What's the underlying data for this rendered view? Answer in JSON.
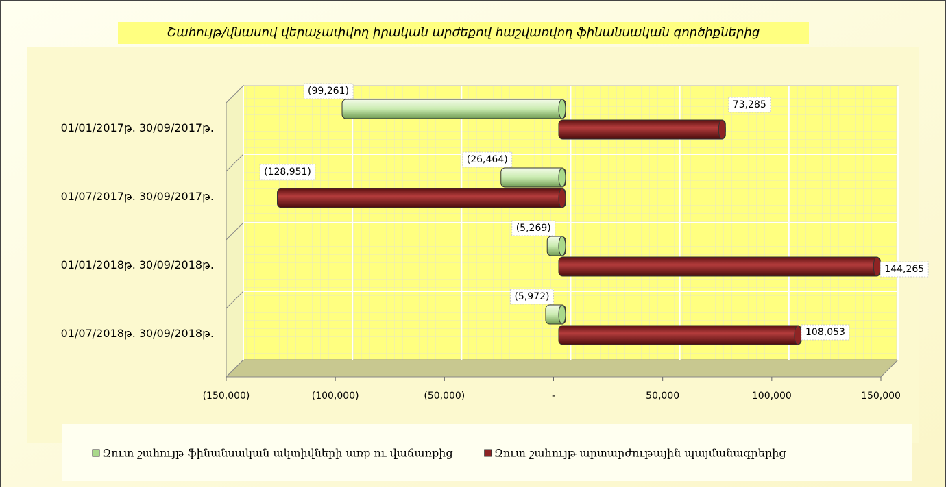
{
  "chart_data": {
    "type": "bar",
    "orientation": "horizontal",
    "title": "Շահույթ/վնասով վերաչափվող իրական արժեքով հաշվառվող ֆինանսական գործիքներից",
    "categories": [
      "01/01/2017թ.  30/09/2017թ.",
      "01/07/2017թ.  30/09/2017թ.",
      "01/01/2018թ.  30/09/2018թ.",
      "01/07/2018թ.  30/09/2018թ."
    ],
    "series": [
      {
        "name": "Զուտ շահույթ  ֆինանսական ակտիվների առք ու վաճառքից",
        "color": "#a9d98a",
        "values": [
          -99261,
          -26464,
          -5269,
          -5972
        ],
        "value_labels": [
          "(99,261)",
          "(26,464)",
          "(5,269)",
          "(5,972)"
        ]
      },
      {
        "name": "Զուտ շահույթ արտարժութային պայմանագրերից",
        "color": "#8e2424",
        "values": [
          73285,
          -128951,
          144265,
          108053
        ],
        "value_labels": [
          "73,285",
          "(128,951)",
          "144,265",
          "108,053"
        ]
      }
    ],
    "xlim": [
      -150000,
      150000
    ],
    "xticks": [
      {
        "value": -150000,
        "label": "(150,000)"
      },
      {
        "value": -100000,
        "label": "(100,000)"
      },
      {
        "value": -50000,
        "label": "(50,000)"
      },
      {
        "value": 0,
        "label": "-"
      },
      {
        "value": 50000,
        "label": "50,000"
      },
      {
        "value": 100000,
        "label": "100,000"
      },
      {
        "value": 150000,
        "label": "150,000"
      }
    ],
    "grid": true,
    "legend": "bottom"
  }
}
